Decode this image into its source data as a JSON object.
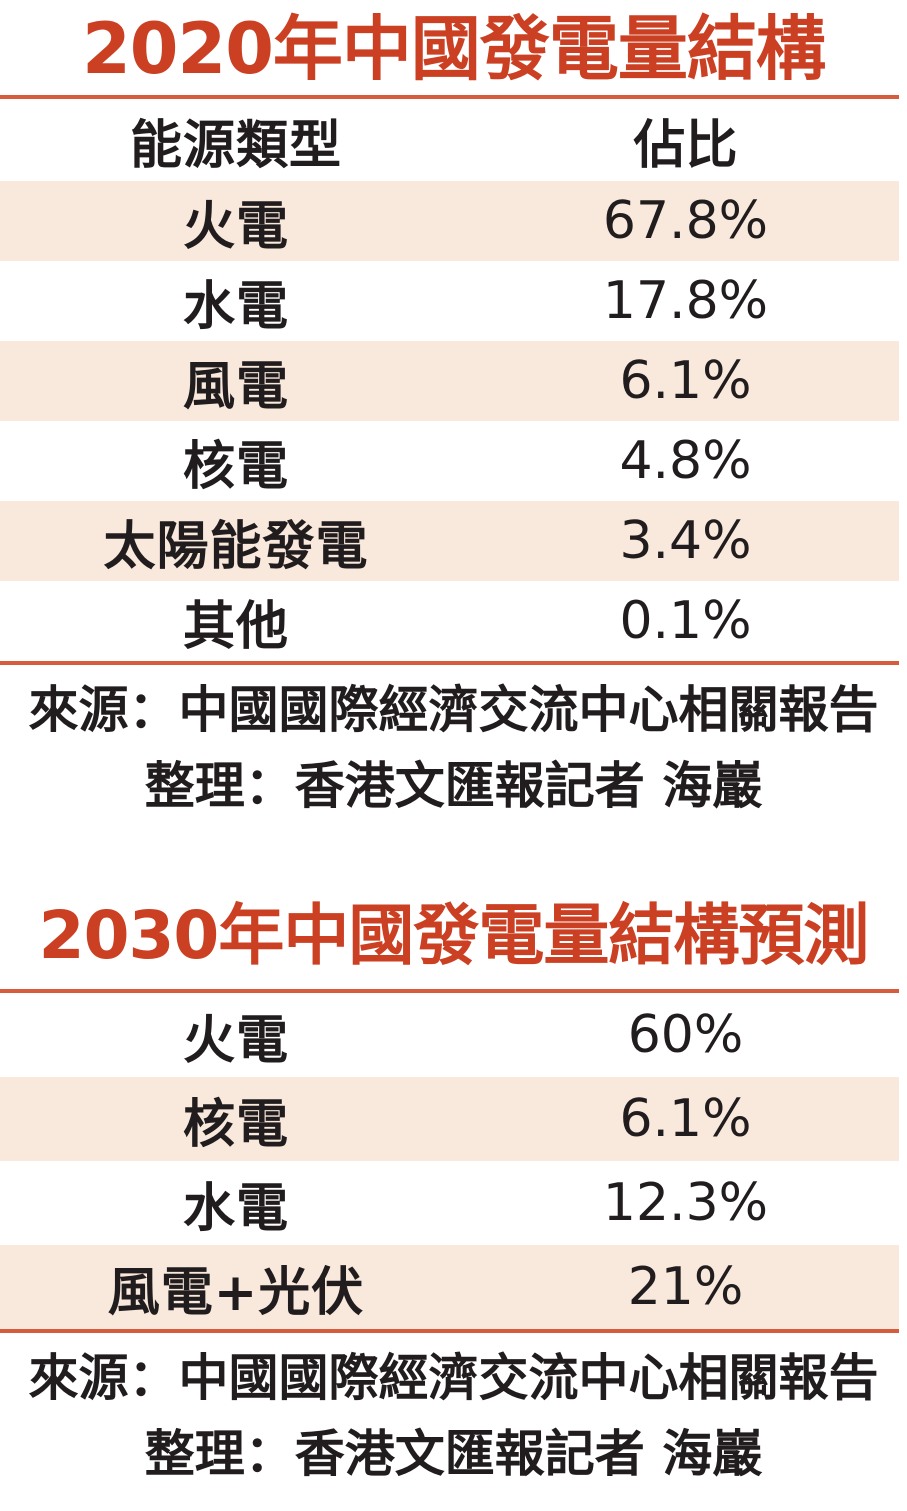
{
  "colors": {
    "accent": "#cb4023",
    "rule": "#d65c3d",
    "shade": "#f9e8dc",
    "ink": "#211d1e",
    "paper": "#ffffff"
  },
  "table1": {
    "title": "2020年中國發電量結構",
    "columns": [
      "能源類型",
      "佔比"
    ],
    "rows": [
      {
        "label": "火電",
        "value": "67.8%"
      },
      {
        "label": "水電",
        "value": "17.8%"
      },
      {
        "label": "風電",
        "value": "6.1%"
      },
      {
        "label": "核電",
        "value": "4.8%"
      },
      {
        "label": "太陽能發電",
        "value": "3.4%"
      },
      {
        "label": "其他",
        "value": "0.1%"
      }
    ],
    "source": "來源：中國國際經濟交流中心相關報告",
    "compiled": "整理：香港文匯報記者 海巖"
  },
  "table2": {
    "title": "2030年中國發電量結構預測",
    "rows": [
      {
        "label": "火電",
        "value": "60%"
      },
      {
        "label": "核電",
        "value": "6.1%"
      },
      {
        "label": "水電",
        "value": "12.3%"
      },
      {
        "label": "風電+光伏",
        "value": "21%"
      }
    ],
    "source": "來源：中國國際經濟交流中心相關報告",
    "compiled": "整理：香港文匯報記者 海巖"
  },
  "chart_data": [
    {
      "type": "table",
      "title": "2020年中國發電量結構",
      "columns": [
        "能源類型",
        "佔比"
      ],
      "categories": [
        "火電",
        "水電",
        "風電",
        "核電",
        "太陽能發電",
        "其他"
      ],
      "values": [
        67.8,
        17.8,
        6.1,
        4.8,
        3.4,
        0.1
      ],
      "unit": "%",
      "source": "來源：中國國際經濟交流中心相關報告",
      "compiled_by": "整理：香港文匯報記者 海巖"
    },
    {
      "type": "table",
      "title": "2030年中國發電量結構預測",
      "columns": [
        "能源類型",
        "佔比"
      ],
      "categories": [
        "火電",
        "核電",
        "水電",
        "風電+光伏"
      ],
      "values": [
        60,
        6.1,
        12.3,
        21
      ],
      "unit": "%",
      "source": "來源：中國國際經濟交流中心相關報告",
      "compiled_by": "整理：香港文匯報記者 海巖"
    }
  ]
}
